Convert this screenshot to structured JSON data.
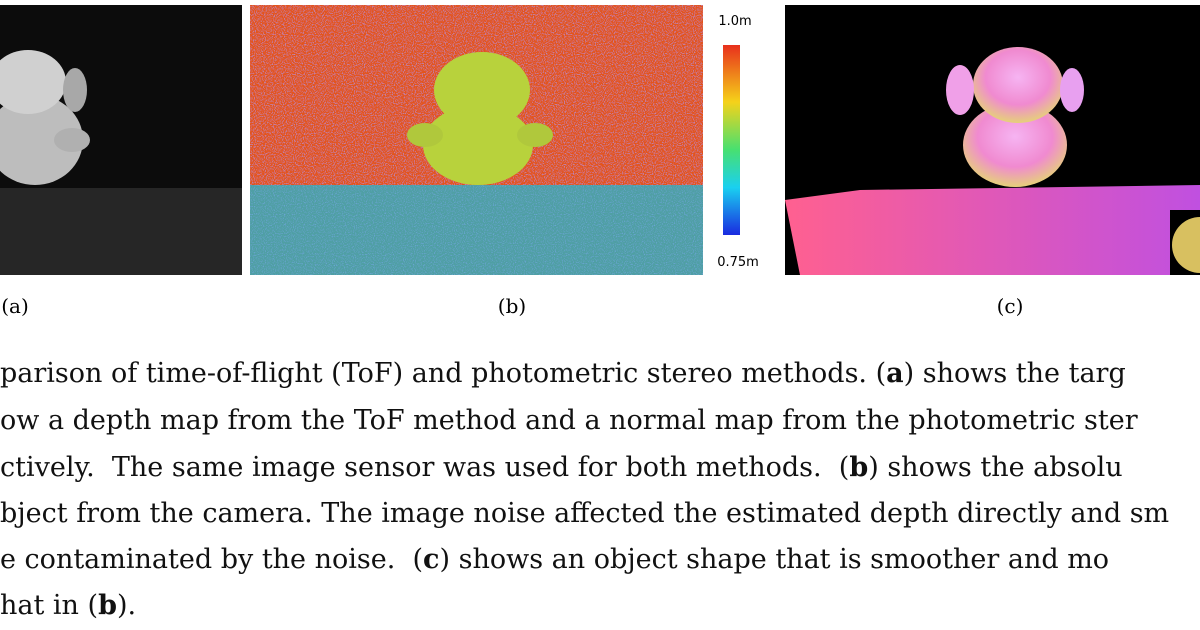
{
  "figure": {
    "panels": [
      {
        "label": "(a)"
      },
      {
        "label": "(b)"
      },
      {
        "label": "(c)"
      }
    ],
    "colorbar": {
      "max_label": "1.0m",
      "min_label": "0.75m"
    }
  },
  "caption": {
    "lines": [
      [
        {
          "text": "parison of time-of-flight (ToF) and photometric stereo methods. ("
        },
        {
          "text": "a",
          "bold": true
        },
        {
          "text": ") shows the targ"
        }
      ],
      [
        {
          "text": "ow a depth map from the ToF method and a normal map from the photometric ster"
        }
      ],
      [
        {
          "text": "ctively.  The same image sensor was used for both methods.  ("
        },
        {
          "text": "b",
          "bold": true
        },
        {
          "text": ") shows the absolu"
        }
      ],
      [
        {
          "text": "bject from the camera. The image noise affected the estimated depth directly and sm"
        }
      ],
      [
        {
          "text": "e contaminated by the noise.  ("
        },
        {
          "text": "c",
          "bold": true
        },
        {
          "text": ") shows an object shape that is smoother and mo"
        }
      ],
      [
        {
          "text": "hat in ("
        },
        {
          "text": "b",
          "bold": true
        },
        {
          "text": ")."
        }
      ]
    ]
  }
}
